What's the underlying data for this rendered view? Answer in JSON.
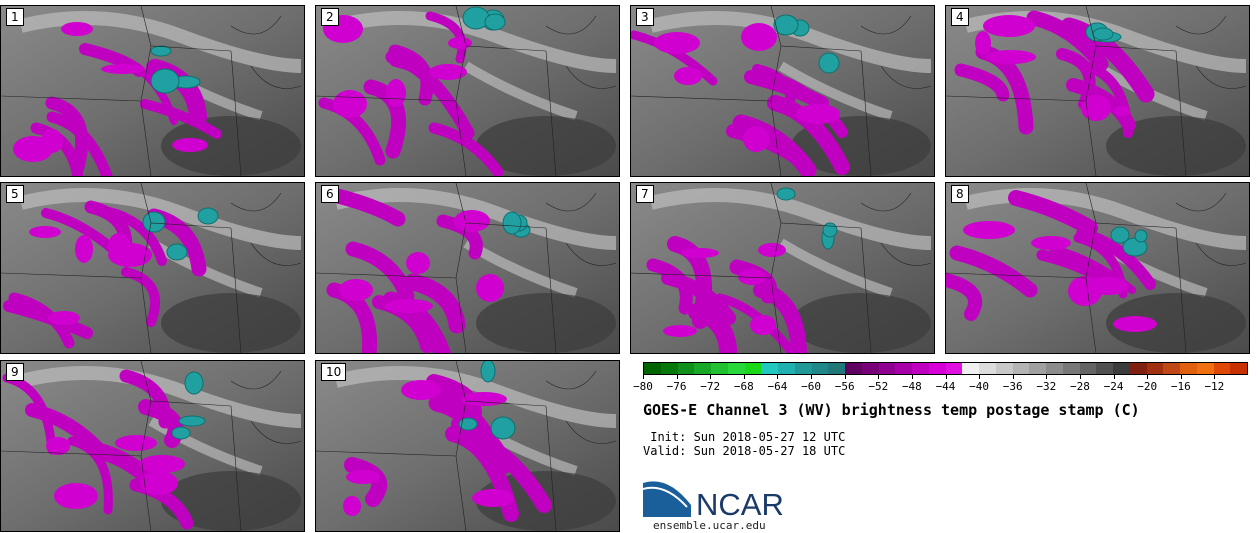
{
  "figure": {
    "title": "GOES-E Channel 3 (WV) brightness temp postage stamp (C)",
    "init_line": " Init: Sun 2018-05-27 12 UTC",
    "valid_line": "Valid: Sun 2018-05-27 18 UTC",
    "site": "ensemble.ucar.edu",
    "logo_text": "NCAR"
  },
  "panels": [
    {
      "label": "1"
    },
    {
      "label": "2"
    },
    {
      "label": "3"
    },
    {
      "label": "4"
    },
    {
      "label": "5"
    },
    {
      "label": "6"
    },
    {
      "label": "7"
    },
    {
      "label": "8"
    },
    {
      "label": "9"
    },
    {
      "label": "10"
    }
  ],
  "colorbar": {
    "min": -80,
    "max": -8,
    "tick_labels": [
      "-80",
      "-76",
      "-72",
      "-68",
      "-64",
      "-60",
      "-56",
      "-52",
      "-48",
      "-44",
      "-40",
      "-36",
      "-32",
      "-28",
      "-24",
      "-20",
      "-16",
      "-12"
    ],
    "colors": [
      "#006400",
      "#08780a",
      "#10901a",
      "#18a828",
      "#20c030",
      "#28d838",
      "#18d818",
      "#20c8c0",
      "#20b0b0",
      "#209898",
      "#208888",
      "#207878",
      "#600060",
      "#780078",
      "#900090",
      "#a800a8",
      "#c000c0",
      "#d800d8",
      "#e010e0",
      "#f0f0f0",
      "#dcdcdc",
      "#c8c8c8",
      "#b4b4b4",
      "#a0a0a0",
      "#8c8c8c",
      "#787878",
      "#646464",
      "#505050",
      "#3c3c3c",
      "#802010",
      "#a03010",
      "#c04818",
      "#e06010",
      "#f07010",
      "#e04808",
      "#c83000"
    ]
  }
}
